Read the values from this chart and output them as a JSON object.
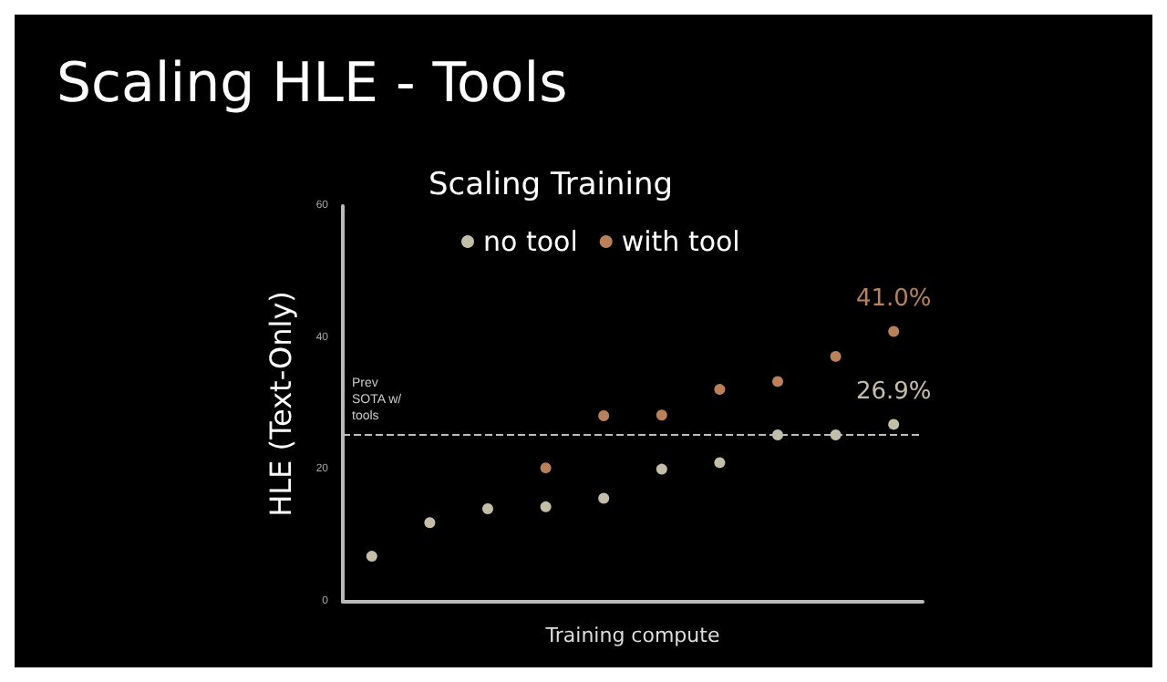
{
  "chart_data": {
    "type": "scatter",
    "title": "Scaling HLE - Tools",
    "subtitle": "Scaling Training",
    "xlabel": "Training compute",
    "ylabel": "HLE (Text-Only)",
    "categories": [
      null,
      null,
      null,
      null,
      null,
      null,
      null,
      null,
      null,
      null
    ],
    "series": [
      {
        "name": "no tool",
        "color": "#f2eed2",
        "values": [
          6.9,
          12.0,
          14.1,
          14.4,
          15.7,
          20.1,
          21.1,
          25.3,
          25.3,
          26.9
        ],
        "value_labels": [
          null,
          null,
          null,
          null,
          null,
          null,
          null,
          null,
          null,
          "26.9%"
        ]
      },
      {
        "name": "with tool",
        "color": "#e8a06e",
        "values": [
          null,
          null,
          null,
          20.3,
          28.2,
          28.3,
          32.2,
          33.4,
          37.2,
          41.0
        ],
        "value_labels": [
          null,
          null,
          null,
          null,
          null,
          null,
          null,
          null,
          null,
          "41.0%"
        ]
      }
    ],
    "ylim": [
      0,
      60
    ],
    "yticks": [
      0,
      20,
      40,
      60
    ],
    "grid": false,
    "legend": "top",
    "marker": "circle",
    "ref_lines": [
      {
        "axis": "y",
        "value": 25.5,
        "label": "Prev SOTA w/ tools",
        "color": "#bbbbbb",
        "line_style": "dashed"
      }
    ]
  }
}
